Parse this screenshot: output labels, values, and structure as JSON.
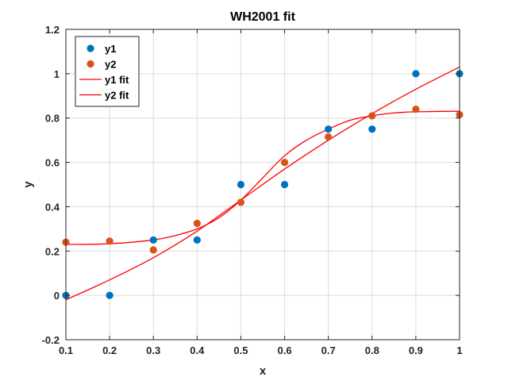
{
  "chart_data": {
    "type": "scatter",
    "title": "WH2001 fit",
    "xlabel": "x",
    "ylabel": "y",
    "xlim": [
      0.1,
      1
    ],
    "ylim": [
      -0.2,
      1.2
    ],
    "xticks": [
      "0.1",
      "0.2",
      "0.3",
      "0.4",
      "0.5",
      "0.6",
      "0.7",
      "0.8",
      "0.9",
      "1"
    ],
    "yticks": [
      "-0.2",
      "0",
      "0.2",
      "0.4",
      "0.6",
      "0.8",
      "1",
      "1.2"
    ],
    "grid": true,
    "legend_position": "top-left",
    "series": [
      {
        "name": "y1",
        "kind": "markers",
        "color": "#0072bd",
        "x": [
          0.1,
          0.2,
          0.3,
          0.4,
          0.5,
          0.6,
          0.7,
          0.8,
          0.9,
          1.0
        ],
        "y": [
          0.0,
          0.0,
          0.25,
          0.25,
          0.5,
          0.5,
          0.75,
          0.75,
          1.0,
          1.0
        ]
      },
      {
        "name": "y2",
        "kind": "markers",
        "color": "#d95319",
        "x": [
          0.1,
          0.2,
          0.3,
          0.4,
          0.5,
          0.6,
          0.7,
          0.8,
          0.9,
          1.0
        ],
        "y": [
          0.24,
          0.245,
          0.205,
          0.325,
          0.42,
          0.6,
          0.715,
          0.81,
          0.84,
          0.815
        ]
      },
      {
        "name": "y1 fit",
        "kind": "line",
        "color": "#ff0000",
        "x": [
          0.1,
          0.2,
          0.3,
          0.4,
          0.5,
          0.6,
          0.7,
          0.8,
          0.9,
          1.0
        ],
        "y": [
          -0.02,
          0.07,
          0.17,
          0.29,
          0.43,
          0.57,
          0.7,
          0.82,
          0.93,
          1.03
        ]
      },
      {
        "name": "y2 fit",
        "kind": "line",
        "color": "#ff0000",
        "x": [
          0.1,
          0.2,
          0.3,
          0.35,
          0.4,
          0.45,
          0.5,
          0.55,
          0.6,
          0.65,
          0.7,
          0.75,
          0.8,
          0.85,
          0.9,
          1.0
        ],
        "y": [
          0.23,
          0.233,
          0.25,
          0.27,
          0.3,
          0.35,
          0.43,
          0.53,
          0.63,
          0.7,
          0.75,
          0.79,
          0.81,
          0.823,
          0.828,
          0.831
        ]
      }
    ]
  }
}
